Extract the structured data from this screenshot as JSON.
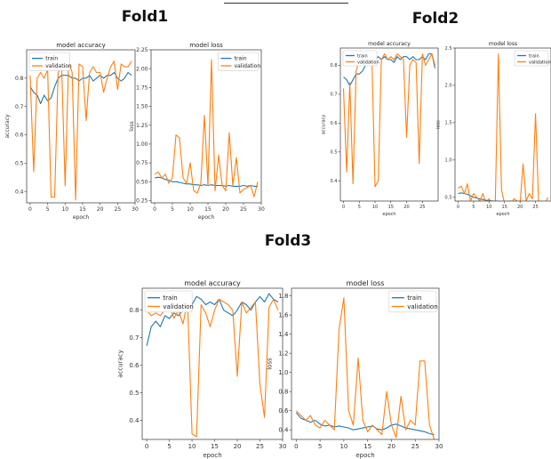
{
  "colors": {
    "train": "#1f77b4",
    "validation": "#ff7f0e"
  },
  "fold_titles": [
    "Fold1",
    "Fold2",
    "Fold3"
  ],
  "chart_data": [
    {
      "fold": "Fold1",
      "type": "line",
      "title": "model accuracy",
      "xlabel": "epoch",
      "ylabel": "accuracy",
      "xlim": [
        -1,
        30
      ],
      "ylim": [
        0.36,
        0.9
      ],
      "xticks": [
        0,
        5,
        10,
        15,
        20,
        25,
        30
      ],
      "yticks": [
        0.4,
        0.5,
        0.6,
        0.7,
        0.8
      ],
      "legend": "upper left",
      "x": [
        0,
        1,
        2,
        3,
        4,
        5,
        6,
        7,
        8,
        9,
        10,
        11,
        12,
        13,
        14,
        15,
        16,
        17,
        18,
        19,
        20,
        21,
        22,
        23,
        24,
        25,
        26,
        27,
        28,
        29
      ],
      "series": [
        {
          "name": "train",
          "values": [
            0.77,
            0.75,
            0.74,
            0.71,
            0.74,
            0.72,
            0.73,
            0.77,
            0.8,
            0.81,
            0.81,
            0.81,
            0.8,
            0.8,
            0.79,
            0.8,
            0.8,
            0.81,
            0.79,
            0.8,
            0.81,
            0.8,
            0.81,
            0.81,
            0.82,
            0.8,
            0.79,
            0.8,
            0.82,
            0.81
          ]
        },
        {
          "name": "validation",
          "values": [
            0.81,
            0.47,
            0.8,
            0.82,
            0.8,
            0.83,
            0.38,
            0.38,
            0.82,
            0.84,
            0.42,
            0.86,
            0.82,
            0.37,
            0.85,
            0.84,
            0.65,
            0.82,
            0.84,
            0.82,
            0.82,
            0.75,
            0.8,
            0.84,
            0.86,
            0.76,
            0.85,
            0.84,
            0.84,
            0.86
          ]
        }
      ]
    },
    {
      "fold": "Fold1",
      "type": "line",
      "title": "model loss",
      "xlabel": "epoch",
      "ylabel": "loss",
      "xlim": [
        -1,
        30
      ],
      "ylim": [
        0.22,
        2.25
      ],
      "xticks": [
        0,
        5,
        10,
        15,
        20,
        25,
        30
      ],
      "yticks": [
        0.25,
        0.5,
        0.75,
        1.0,
        1.25,
        1.5,
        1.75,
        2.0,
        2.25
      ],
      "legend": "upper right",
      "x": [
        0,
        1,
        2,
        3,
        4,
        5,
        6,
        7,
        8,
        9,
        10,
        11,
        12,
        13,
        14,
        15,
        16,
        17,
        18,
        19,
        20,
        21,
        22,
        23,
        24,
        25,
        26,
        27,
        28,
        29
      ],
      "series": [
        {
          "name": "train",
          "values": [
            0.55,
            0.56,
            0.55,
            0.53,
            0.52,
            0.5,
            0.5,
            0.49,
            0.48,
            0.47,
            0.47,
            0.46,
            0.46,
            0.45,
            0.46,
            0.45,
            0.46,
            0.45,
            0.45,
            0.45,
            0.44,
            0.45,
            0.44,
            0.44,
            0.44,
            0.45,
            0.44,
            0.45,
            0.44,
            0.44
          ]
        },
        {
          "name": "validation",
          "values": [
            0.6,
            0.63,
            0.55,
            0.6,
            0.48,
            0.55,
            1.12,
            1.08,
            0.55,
            0.48,
            0.75,
            0.38,
            0.35,
            0.48,
            1.38,
            0.45,
            2.12,
            0.38,
            0.85,
            0.45,
            0.38,
            1.15,
            0.45,
            0.82,
            0.35,
            0.4,
            0.42,
            0.45,
            0.3,
            0.5
          ]
        }
      ]
    },
    {
      "fold": "Fold2",
      "type": "line",
      "title": "model accuracy",
      "xlabel": "epoch",
      "ylabel": "accuracy",
      "xlim": [
        -1,
        30
      ],
      "ylim": [
        0.33,
        0.86
      ],
      "xticks": [
        0,
        5,
        10,
        15,
        20,
        25
      ],
      "yticks": [
        0.4,
        0.5,
        0.6,
        0.7,
        0.8
      ],
      "legend": "upper left",
      "x": [
        0,
        1,
        2,
        3,
        4,
        5,
        6,
        7,
        8,
        9,
        10,
        11,
        12,
        13,
        14,
        15,
        16,
        17,
        18,
        19,
        20,
        21,
        22,
        23,
        24,
        25,
        26,
        27,
        28,
        29
      ],
      "series": [
        {
          "name": "train",
          "values": [
            0.76,
            0.75,
            0.73,
            0.75,
            0.77,
            0.77,
            0.78,
            0.8,
            0.8,
            0.81,
            0.82,
            0.83,
            0.82,
            0.83,
            0.82,
            0.82,
            0.81,
            0.83,
            0.82,
            0.83,
            0.83,
            0.82,
            0.83,
            0.82,
            0.82,
            0.83,
            0.82,
            0.84,
            0.84,
            0.79
          ]
        },
        {
          "name": "validation",
          "values": [
            0.72,
            0.43,
            0.74,
            0.39,
            0.78,
            0.82,
            0.83,
            0.82,
            0.84,
            0.82,
            0.38,
            0.4,
            0.82,
            0.84,
            0.82,
            0.83,
            0.82,
            0.84,
            0.83,
            0.82,
            0.55,
            0.8,
            0.82,
            0.81,
            0.46,
            0.84,
            0.8,
            0.82,
            0.84,
            0.8
          ]
        }
      ]
    },
    {
      "fold": "Fold2",
      "type": "line",
      "title": "model loss",
      "xlabel": "epoch",
      "ylabel": "loss",
      "xlim": [
        -1,
        30
      ],
      "ylim": [
        0.45,
        2.5
      ],
      "xticks": [
        0,
        5,
        10,
        15,
        20,
        25
      ],
      "yticks": [
        0.5,
        1.0,
        1.5,
        2.0,
        2.5
      ],
      "legend": "upper right",
      "x": [
        0,
        1,
        2,
        3,
        4,
        5,
        6,
        7,
        8,
        9,
        10,
        11,
        12,
        13,
        14,
        15,
        16,
        17,
        18,
        19,
        20,
        21,
        22,
        23,
        24,
        25,
        26,
        27,
        28,
        29
      ],
      "series": [
        {
          "name": "train",
          "values": [
            0.55,
            0.56,
            0.55,
            0.54,
            0.52,
            0.5,
            0.49,
            0.48,
            0.47,
            0.46,
            0.46,
            0.45,
            0.45,
            0.45,
            0.44,
            0.44,
            0.44,
            0.45,
            0.44,
            0.44,
            0.43,
            0.44,
            0.44,
            0.43,
            0.43,
            0.44,
            0.43,
            0.43,
            0.42,
            0.42
          ]
        },
        {
          "name": "validation",
          "values": [
            0.62,
            0.65,
            0.55,
            0.68,
            0.45,
            0.55,
            0.5,
            0.45,
            0.55,
            0.42,
            0.48,
            0.38,
            0.42,
            2.42,
            0.6,
            0.42,
            0.45,
            0.4,
            0.48,
            0.45,
            0.42,
            0.95,
            0.45,
            0.55,
            0.48,
            1.62,
            0.42,
            0.45,
            0.4,
            0.5
          ]
        }
      ]
    },
    {
      "fold": "Fold3",
      "type": "line",
      "title": "model accuracy",
      "xlabel": "epoch",
      "ylabel": "accuracy",
      "xlim": [
        -1,
        30
      ],
      "ylim": [
        0.33,
        0.88
      ],
      "xticks": [
        0,
        5,
        10,
        15,
        20,
        25,
        30
      ],
      "yticks": [
        0.4,
        0.5,
        0.6,
        0.7,
        0.8
      ],
      "legend": "upper left",
      "x": [
        0,
        1,
        2,
        3,
        4,
        5,
        6,
        7,
        8,
        9,
        10,
        11,
        12,
        13,
        14,
        15,
        16,
        17,
        18,
        19,
        20,
        21,
        22,
        23,
        24,
        25,
        26,
        27,
        28,
        29
      ],
      "series": [
        {
          "name": "train",
          "values": [
            0.67,
            0.74,
            0.76,
            0.74,
            0.78,
            0.77,
            0.79,
            0.78,
            0.8,
            0.81,
            0.82,
            0.85,
            0.84,
            0.82,
            0.83,
            0.82,
            0.84,
            0.8,
            0.79,
            0.78,
            0.8,
            0.83,
            0.82,
            0.8,
            0.83,
            0.85,
            0.83,
            0.86,
            0.84,
            0.83
          ]
        },
        {
          "name": "validation",
          "values": [
            0.8,
            0.78,
            0.79,
            0.78,
            0.8,
            0.82,
            0.77,
            0.8,
            0.75,
            0.83,
            0.35,
            0.34,
            0.82,
            0.79,
            0.74,
            0.8,
            0.84,
            0.83,
            0.82,
            0.8,
            0.56,
            0.83,
            0.79,
            0.81,
            0.83,
            0.53,
            0.41,
            0.81,
            0.84,
            0.8
          ]
        }
      ]
    },
    {
      "fold": "Fold3",
      "type": "line",
      "title": "model loss",
      "xlabel": "epoch",
      "ylabel": "loss",
      "xlim": [
        -1,
        30
      ],
      "ylim": [
        0.3,
        1.88
      ],
      "xticks": [
        0,
        5,
        10,
        15,
        20,
        25,
        30
      ],
      "yticks": [
        0.4,
        0.6,
        0.8,
        1.0,
        1.2,
        1.4,
        1.6,
        1.8
      ],
      "legend": "upper right",
      "x": [
        0,
        1,
        2,
        3,
        4,
        5,
        6,
        7,
        8,
        9,
        10,
        11,
        12,
        13,
        14,
        15,
        16,
        17,
        18,
        19,
        20,
        21,
        22,
        23,
        24,
        25,
        26,
        27,
        28,
        29
      ],
      "series": [
        {
          "name": "train",
          "values": [
            0.58,
            0.52,
            0.5,
            0.48,
            0.5,
            0.46,
            0.44,
            0.45,
            0.43,
            0.44,
            0.43,
            0.42,
            0.4,
            0.41,
            0.42,
            0.43,
            0.44,
            0.41,
            0.4,
            0.42,
            0.45,
            0.46,
            0.44,
            0.42,
            0.41,
            0.4,
            0.39,
            0.38,
            0.36,
            0.35
          ]
        },
        {
          "name": "validation",
          "values": [
            0.6,
            0.55,
            0.5,
            0.55,
            0.45,
            0.42,
            0.5,
            0.45,
            0.4,
            1.45,
            1.78,
            0.6,
            0.45,
            1.15,
            0.5,
            0.38,
            0.45,
            0.4,
            0.35,
            0.8,
            0.45,
            0.32,
            0.75,
            0.4,
            0.5,
            0.45,
            1.12,
            1.12,
            0.45,
            0.3
          ]
        }
      ]
    }
  ]
}
